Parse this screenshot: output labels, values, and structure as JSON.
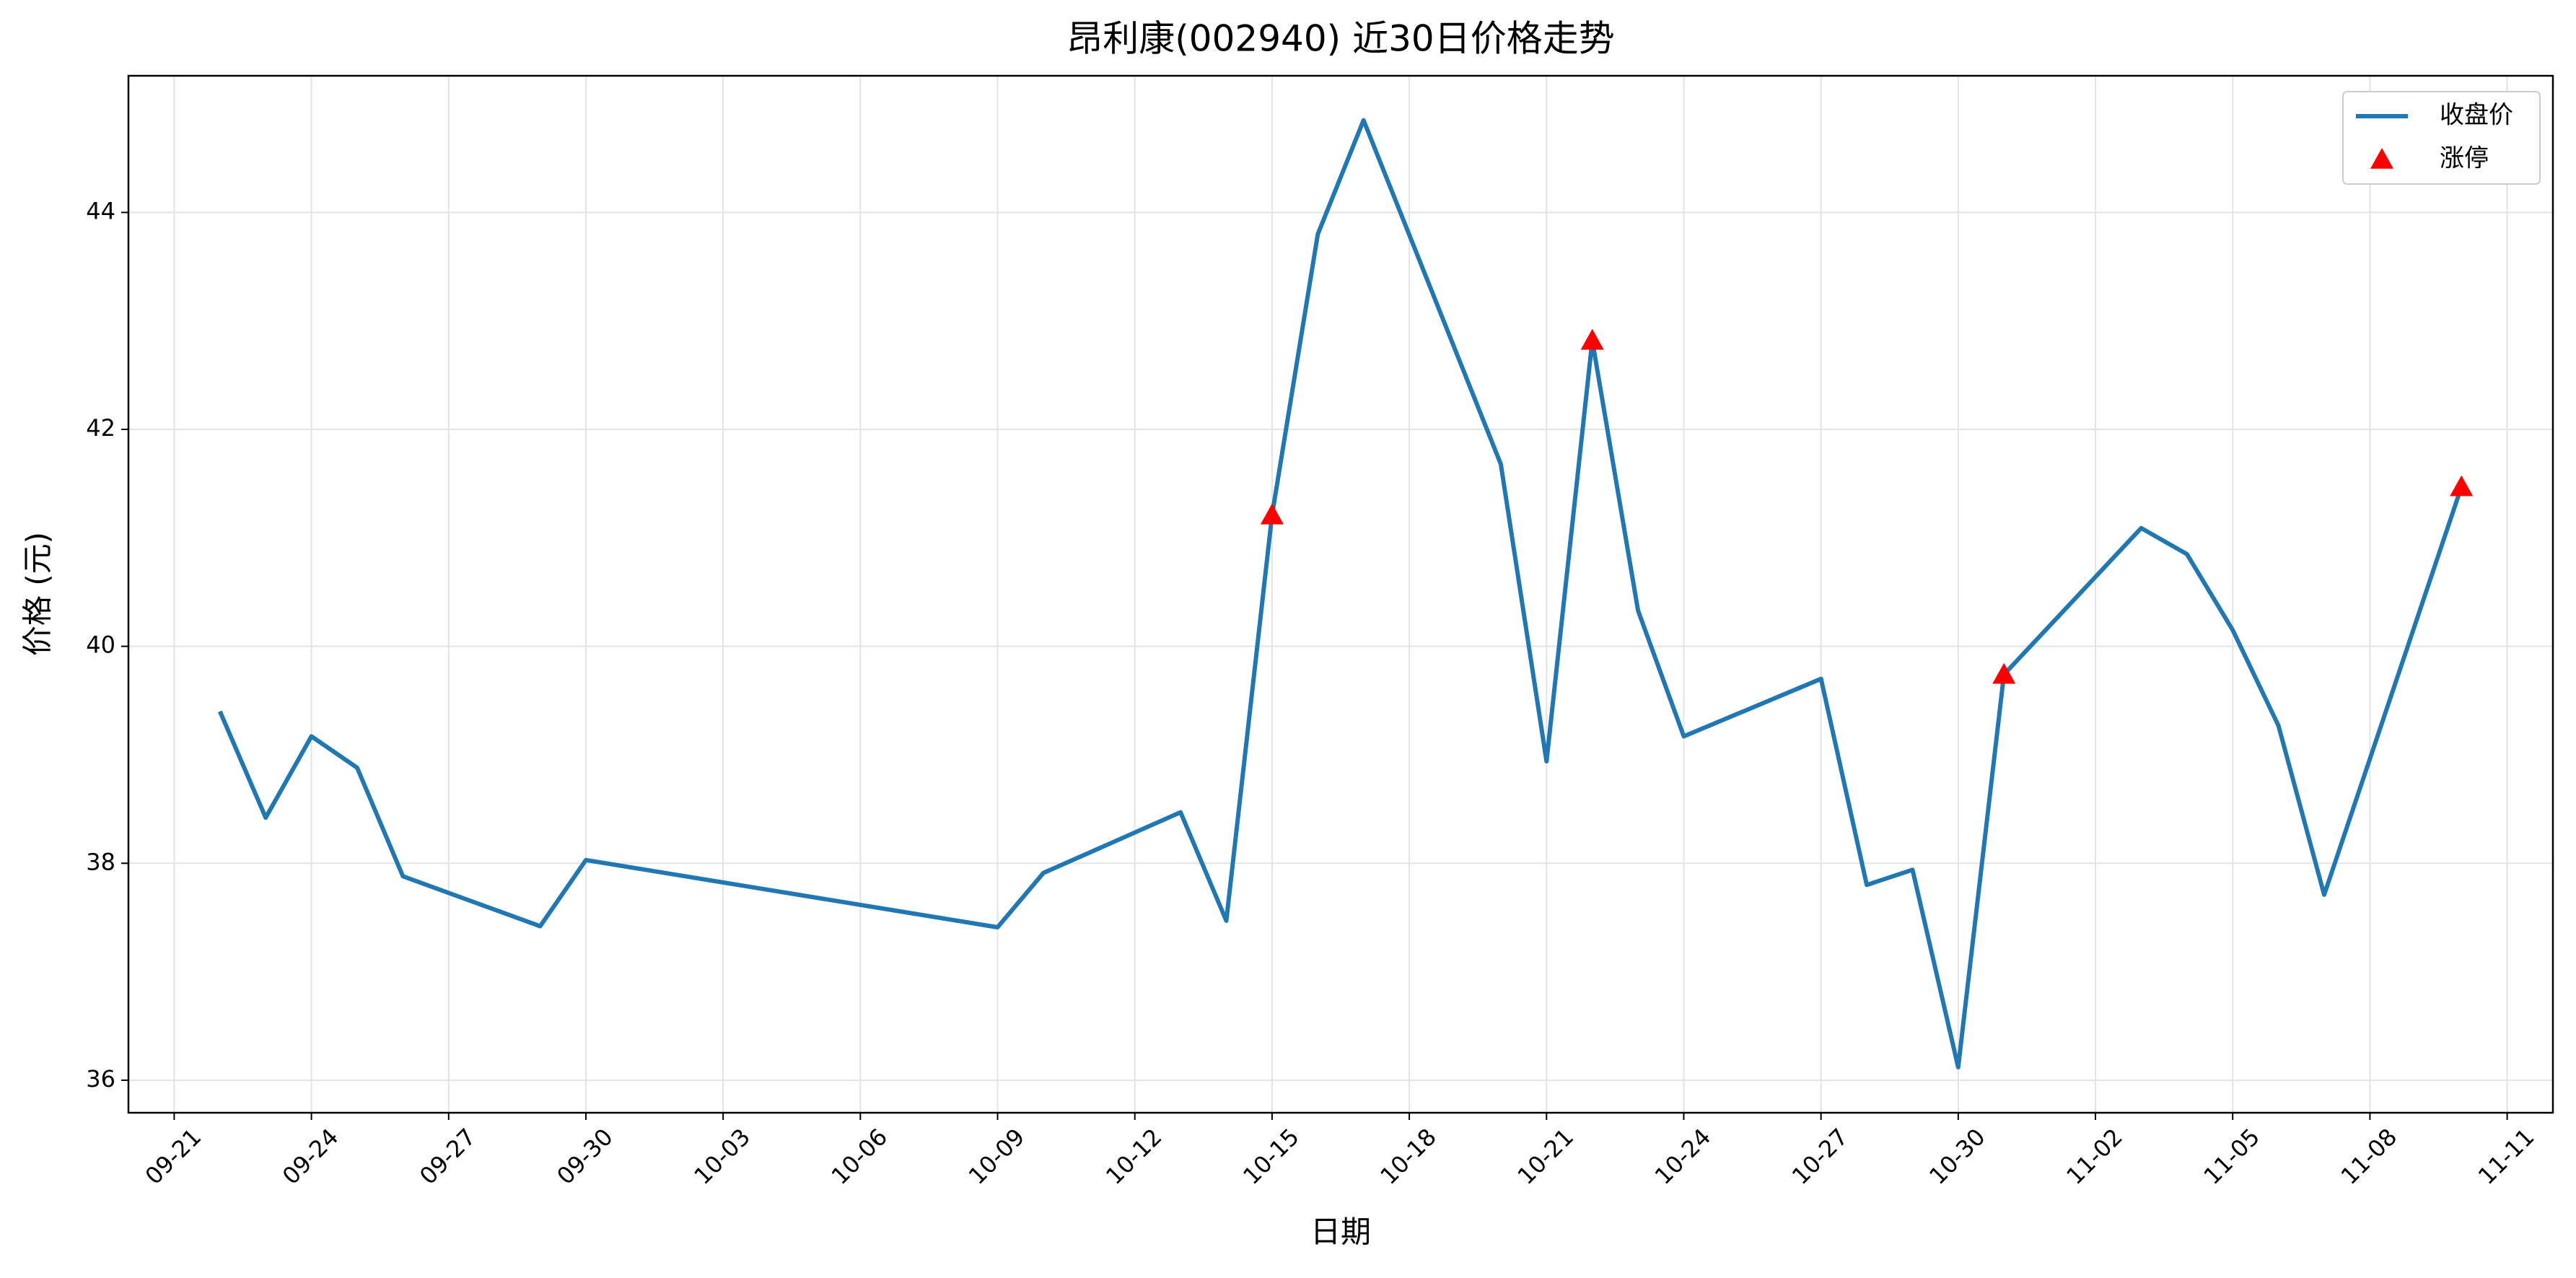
{
  "chart_data": {
    "type": "line",
    "title": "昂利康(002940) 近30日价格走势",
    "x_label": "日期",
    "y_label": "价格 (元)",
    "x": [
      "09-22",
      "09-23",
      "09-24",
      "09-25",
      "09-26",
      "09-29",
      "09-30",
      "10-09",
      "10-10",
      "10-13",
      "10-14",
      "10-15",
      "10-16",
      "10-17",
      "10-20",
      "10-21",
      "10-22",
      "10-23",
      "10-24",
      "10-27",
      "10-28",
      "10-29",
      "10-30",
      "10-31",
      "11-03",
      "11-04",
      "11-05",
      "11-06",
      "11-07",
      "11-10"
    ],
    "series": [
      {
        "name": "收盘价",
        "color": "#1f77b4",
        "values": [
          39.4,
          38.42,
          39.17,
          38.88,
          37.88,
          37.42,
          38.03,
          37.41,
          37.91,
          38.47,
          37.47,
          41.21,
          43.8,
          44.85,
          41.68,
          38.94,
          42.82,
          40.33,
          39.17,
          39.7,
          37.8,
          37.94,
          36.12,
          39.74,
          41.09,
          40.85,
          40.15,
          39.27,
          37.71,
          41.47
        ]
      },
      {
        "name": "涨停",
        "color": "#ff0000",
        "type": "scatter",
        "x": [
          "10-15",
          "10-22",
          "10-31",
          "11-10"
        ],
        "values": [
          41.21,
          42.82,
          39.74,
          41.47
        ]
      }
    ],
    "xlim": [
      "09-20",
      "11-12"
    ],
    "xticks": [
      "09-21",
      "09-24",
      "09-27",
      "09-30",
      "10-03",
      "10-06",
      "10-09",
      "10-12",
      "10-15",
      "10-18",
      "10-21",
      "10-24",
      "10-27",
      "10-30",
      "11-02",
      "11-05",
      "11-08",
      "11-11"
    ],
    "ylim": [
      35.7,
      45.26
    ],
    "yticks": [
      36,
      38,
      40,
      42,
      44
    ],
    "grid": true,
    "legend": "upper-right"
  }
}
